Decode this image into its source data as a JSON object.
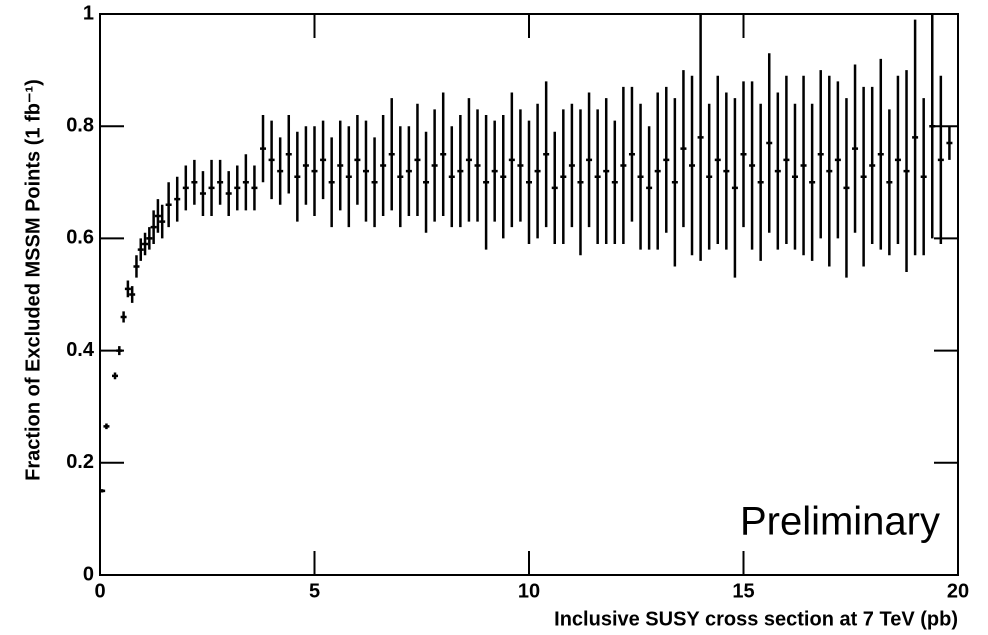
{
  "chart_data": {
    "type": "errorbar",
    "xlabel": "Inclusive SUSY cross section at 7 TeV (pb)",
    "ylabel": "Fraction of Excluded MSSM Points (1 fb⁻¹)",
    "annotation": "Preliminary",
    "color": "#000000",
    "xlim": [
      0,
      20
    ],
    "ylim": [
      0,
      1
    ],
    "xticks": [
      0,
      5,
      10,
      15,
      20
    ],
    "yticks": [
      0,
      0.2,
      0.4,
      0.6,
      0.8,
      1
    ],
    "x": [
      0.05,
      0.15,
      0.35,
      0.45,
      0.55,
      0.65,
      0.75,
      0.85,
      0.95,
      1.05,
      1.15,
      1.25,
      1.35,
      1.45,
      1.6,
      1.8,
      2.0,
      2.2,
      2.4,
      2.6,
      2.8,
      3.0,
      3.2,
      3.4,
      3.6,
      3.8,
      4.0,
      4.2,
      4.4,
      4.6,
      4.8,
      5.0,
      5.2,
      5.4,
      5.6,
      5.8,
      6.0,
      6.2,
      6.4,
      6.6,
      6.8,
      7.0,
      7.2,
      7.4,
      7.6,
      7.8,
      8.0,
      8.2,
      8.4,
      8.6,
      8.8,
      9.0,
      9.2,
      9.4,
      9.6,
      9.8,
      10.0,
      10.2,
      10.4,
      10.6,
      10.8,
      11.0,
      11.2,
      11.4,
      11.6,
      11.8,
      12.0,
      12.2,
      12.4,
      12.6,
      12.8,
      13.0,
      13.2,
      13.4,
      13.6,
      13.8,
      14.0,
      14.2,
      14.4,
      14.6,
      14.8,
      15.0,
      15.2,
      15.4,
      15.6,
      15.8,
      16.0,
      16.2,
      16.4,
      16.6,
      16.8,
      17.0,
      17.2,
      17.4,
      17.6,
      17.8,
      18.0,
      18.2,
      18.4,
      18.6,
      18.8,
      19.0,
      19.2,
      19.4,
      19.6,
      19.8
    ],
    "values": [
      0.15,
      0.265,
      0.355,
      0.4,
      0.46,
      0.51,
      0.5,
      0.55,
      0.58,
      0.59,
      0.6,
      0.62,
      0.64,
      0.63,
      0.66,
      0.67,
      0.69,
      0.7,
      0.68,
      0.69,
      0.7,
      0.68,
      0.69,
      0.7,
      0.69,
      0.76,
      0.74,
      0.72,
      0.75,
      0.71,
      0.73,
      0.72,
      0.74,
      0.7,
      0.73,
      0.71,
      0.74,
      0.72,
      0.7,
      0.73,
      0.75,
      0.71,
      0.72,
      0.74,
      0.7,
      0.73,
      0.75,
      0.71,
      0.72,
      0.74,
      0.73,
      0.7,
      0.72,
      0.71,
      0.74,
      0.73,
      0.7,
      0.72,
      0.75,
      0.69,
      0.71,
      0.73,
      0.7,
      0.74,
      0.71,
      0.72,
      0.7,
      0.73,
      0.75,
      0.71,
      0.69,
      0.72,
      0.74,
      0.7,
      0.76,
      0.73,
      0.78,
      0.71,
      0.74,
      0.72,
      0.69,
      0.75,
      0.73,
      0.7,
      0.77,
      0.72,
      0.74,
      0.71,
      0.73,
      0.7,
      0.75,
      0.72,
      0.74,
      0.69,
      0.76,
      0.71,
      0.73,
      0.75,
      0.7,
      0.74,
      0.72,
      0.78,
      0.71,
      0.8,
      0.74,
      0.77
    ],
    "errors": [
      0.003,
      0.005,
      0.006,
      0.008,
      0.01,
      0.015,
      0.015,
      0.02,
      0.02,
      0.02,
      0.02,
      0.03,
      0.03,
      0.03,
      0.04,
      0.04,
      0.04,
      0.04,
      0.04,
      0.05,
      0.04,
      0.04,
      0.04,
      0.05,
      0.04,
      0.06,
      0.07,
      0.06,
      0.07,
      0.08,
      0.07,
      0.08,
      0.07,
      0.08,
      0.08,
      0.09,
      0.08,
      0.09,
      0.08,
      0.09,
      0.1,
      0.09,
      0.08,
      0.1,
      0.09,
      0.1,
      0.11,
      0.09,
      0.1,
      0.11,
      0.1,
      0.12,
      0.09,
      0.11,
      0.12,
      0.1,
      0.11,
      0.12,
      0.13,
      0.1,
      0.12,
      0.11,
      0.13,
      0.12,
      0.12,
      0.13,
      0.11,
      0.14,
      0.12,
      0.13,
      0.11,
      0.14,
      0.13,
      0.15,
      0.14,
      0.16,
      0.22,
      0.13,
      0.15,
      0.14,
      0.16,
      0.13,
      0.15,
      0.14,
      0.16,
      0.14,
      0.15,
      0.13,
      0.16,
      0.14,
      0.15,
      0.17,
      0.14,
      0.16,
      0.15,
      0.16,
      0.14,
      0.17,
      0.13,
      0.15,
      0.18,
      0.21,
      0.14,
      0.2,
      0.15,
      0.03
    ]
  }
}
